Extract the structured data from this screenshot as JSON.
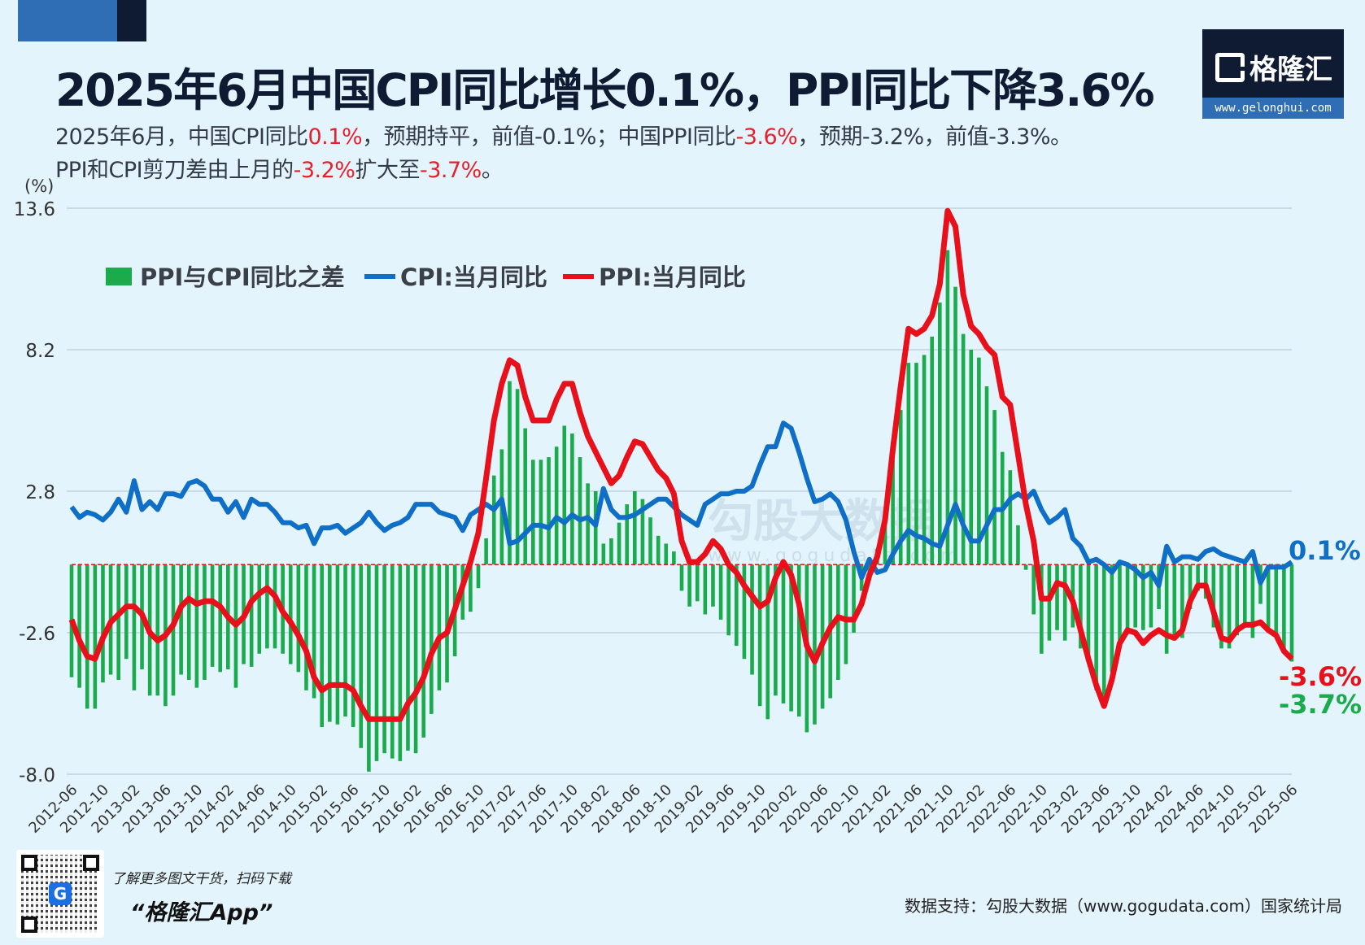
{
  "header": {
    "title": "2025年6月中国CPI同比增长0.1%，PPI同比下降3.6%",
    "line1": [
      {
        "t": "2025年6月，中国CPI同比",
        "red": false
      },
      {
        "t": "0.1%",
        "red": true
      },
      {
        "t": "，预期持平，前值-0.1%；中国PPI同比",
        "red": false
      },
      {
        "t": "-3.6%",
        "red": true
      },
      {
        "t": "，预期-3.2%，前值-3.3%。",
        "red": false
      }
    ],
    "line2": [
      {
        "t": "PPI和CPI剪刀差由上月的",
        "red": false
      },
      {
        "t": "-3.2%",
        "red": true
      },
      {
        "t": "扩大至",
        "red": false
      },
      {
        "t": "-3.7%",
        "red": true
      },
      {
        "t": "。",
        "red": false
      }
    ]
  },
  "logo": {
    "brand": "格隆汇",
    "url": "www.gelonghui.com"
  },
  "watermark": {
    "text": "勾股大数据",
    "url": "www.gogudata.com"
  },
  "colors": {
    "cpi": "#0f6fc6",
    "ppi": "#e8101a",
    "diff": "#1aab4c",
    "background": "#e4f4fd"
  },
  "chart_data": {
    "type": "line+bar",
    "ylabel": "(%)",
    "ylim": [
      -8.0,
      13.6
    ],
    "yticks": [
      13.6,
      8.2,
      2.8,
      -2.6,
      -8.0
    ],
    "grid": true,
    "legend_placement": "top-left",
    "x_start": "2012-06",
    "x_end": "2025-06",
    "xtick_labels": [
      "2012-06",
      "2012-10",
      "2013-02",
      "2013-06",
      "2013-10",
      "2014-02",
      "2014-06",
      "2014-10",
      "2015-02",
      "2015-06",
      "2015-10",
      "2016-02",
      "2016-06",
      "2016-10",
      "2017-02",
      "2017-06",
      "2017-10",
      "2018-02",
      "2018-06",
      "2018-10",
      "2019-02",
      "2019-06",
      "2019-10",
      "2020-02",
      "2020-06",
      "2020-10",
      "2021-02",
      "2021-06",
      "2021-10",
      "2022-02",
      "2022-06",
      "2022-10",
      "2023-02",
      "2023-06",
      "2023-10",
      "2024-02",
      "2024-06",
      "2024-10",
      "2025-02",
      "2025-06"
    ],
    "series": [
      {
        "name": "PPI与CPI同比之差",
        "kind": "bar",
        "derived": "PPI-CPI"
      },
      {
        "name": "CPI:当月同比",
        "kind": "line",
        "values": [
          2.2,
          1.8,
          2.0,
          1.9,
          1.7,
          2.0,
          2.5,
          2.0,
          3.2,
          2.1,
          2.4,
          2.1,
          2.7,
          2.7,
          2.6,
          3.1,
          3.2,
          3.0,
          2.5,
          2.5,
          2.0,
          2.4,
          1.8,
          2.5,
          2.3,
          2.3,
          2.0,
          1.6,
          1.6,
          1.4,
          1.5,
          0.8,
          1.4,
          1.4,
          1.5,
          1.2,
          1.4,
          1.6,
          2.0,
          1.6,
          1.3,
          1.5,
          1.6,
          1.8,
          2.3,
          2.3,
          2.3,
          2.0,
          1.9,
          1.8,
          1.3,
          1.9,
          2.1,
          2.3,
          2.1,
          2.5,
          0.8,
          0.9,
          1.2,
          1.5,
          1.5,
          1.4,
          1.8,
          1.6,
          1.9,
          1.7,
          1.8,
          1.5,
          2.9,
          2.1,
          1.8,
          1.8,
          1.9,
          2.1,
          2.3,
          2.5,
          2.5,
          2.2,
          1.9,
          1.7,
          1.5,
          2.3,
          2.5,
          2.7,
          2.7,
          2.8,
          2.8,
          3.0,
          3.8,
          4.5,
          4.5,
          5.4,
          5.2,
          4.3,
          3.3,
          2.4,
          2.5,
          2.7,
          2.4,
          1.7,
          0.5,
          -0.5,
          0.2,
          -0.3,
          -0.2,
          0.4,
          0.9,
          1.3,
          1.1,
          1.0,
          0.8,
          0.7,
          1.5,
          2.3,
          1.5,
          0.9,
          0.9,
          1.5,
          2.1,
          2.1,
          2.5,
          2.7,
          2.5,
          2.8,
          2.1,
          1.6,
          1.8,
          2.1,
          1.0,
          0.7,
          0.1,
          0.2,
          0.0,
          -0.3,
          0.1,
          0.0,
          -0.2,
          -0.5,
          -0.3,
          -0.8,
          0.7,
          0.1,
          0.3,
          0.3,
          0.2,
          0.5,
          0.6,
          0.4,
          0.3,
          0.2,
          0.1,
          0.5,
          -0.7,
          -0.1,
          -0.1,
          -0.1,
          0.1
        ]
      },
      {
        "name": "PPI:当月同比",
        "kind": "line",
        "values": [
          -2.1,
          -2.9,
          -3.5,
          -3.6,
          -2.8,
          -2.2,
          -1.9,
          -1.6,
          -1.6,
          -1.9,
          -2.6,
          -2.9,
          -2.7,
          -2.3,
          -1.6,
          -1.3,
          -1.5,
          -1.4,
          -1.4,
          -1.6,
          -2.0,
          -2.3,
          -2.0,
          -1.4,
          -1.1,
          -0.9,
          -1.2,
          -1.8,
          -2.2,
          -2.7,
          -3.3,
          -4.3,
          -4.8,
          -4.6,
          -4.6,
          -4.6,
          -4.8,
          -5.4,
          -5.9,
          -5.9,
          -5.9,
          -5.9,
          -5.9,
          -5.3,
          -4.9,
          -4.3,
          -3.4,
          -2.8,
          -2.6,
          -1.7,
          -0.8,
          0.1,
          1.2,
          3.3,
          5.5,
          6.9,
          7.8,
          7.6,
          6.4,
          5.5,
          5.5,
          5.5,
          6.3,
          6.9,
          6.9,
          5.8,
          4.9,
          4.3,
          3.7,
          3.1,
          3.4,
          4.1,
          4.7,
          4.6,
          4.1,
          3.6,
          3.3,
          2.7,
          0.9,
          0.1,
          0.1,
          0.4,
          0.9,
          0.6,
          0.0,
          -0.3,
          -0.8,
          -1.2,
          -1.6,
          -1.4,
          -0.5,
          0.1,
          -0.4,
          -1.5,
          -3.1,
          -3.7,
          -3.0,
          -2.4,
          -2.0,
          -2.1,
          -2.1,
          -1.5,
          -0.4,
          0.3,
          1.7,
          4.4,
          6.8,
          9.0,
          8.8,
          9.0,
          9.5,
          10.7,
          13.5,
          12.9,
          10.3,
          9.1,
          8.8,
          8.3,
          8.0,
          6.4,
          6.1,
          4.2,
          2.3,
          0.9,
          -1.3,
          -1.3,
          -0.7,
          -0.8,
          -1.4,
          -2.5,
          -3.6,
          -4.6,
          -5.4,
          -4.4,
          -3.0,
          -2.5,
          -2.6,
          -3.0,
          -2.7,
          -2.5,
          -2.7,
          -2.8,
          -2.5,
          -1.4,
          -0.8,
          -0.8,
          -1.8,
          -2.8,
          -2.9,
          -2.5,
          -2.3,
          -2.3,
          -2.2,
          -2.5,
          -2.7,
          -3.3,
          -3.6
        ]
      }
    ],
    "end_labels": {
      "cpi": "0.1%",
      "ppi": "-3.6%",
      "diff": "-3.7%"
    }
  },
  "footer": {
    "note": "了解更多图文干货，扫码下载",
    "app": "“格隆汇App”",
    "source": "数据支持：勾股大数据（www.gogudata.com）国家统计局"
  }
}
